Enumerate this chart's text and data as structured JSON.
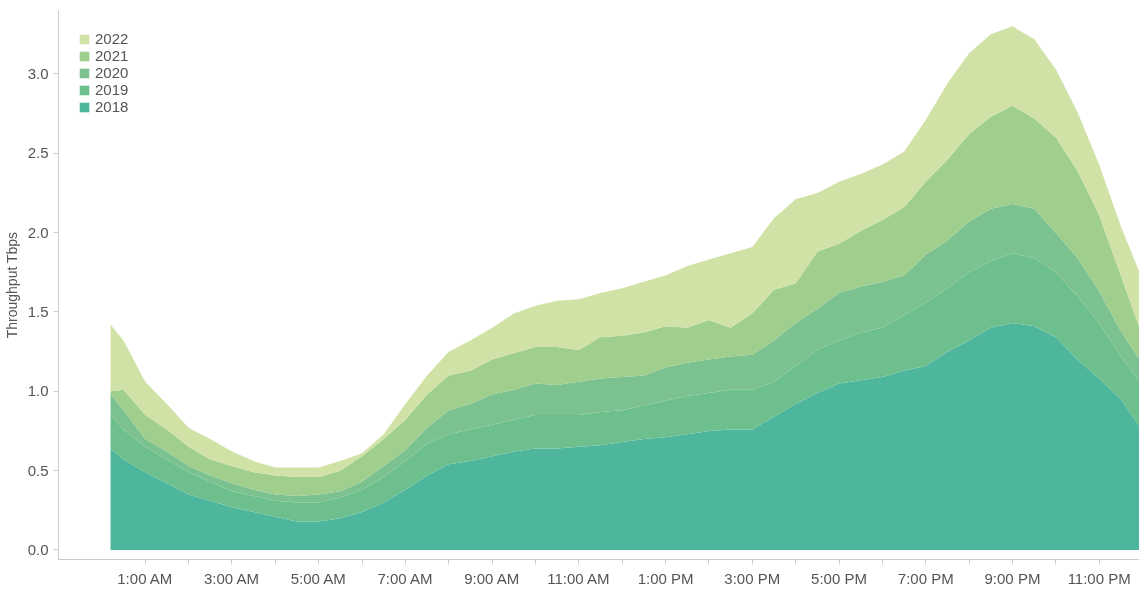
{
  "chart_data": {
    "type": "area",
    "stacked": true,
    "ylabel": "Throughput Tbps",
    "x": [
      0.2,
      0.5,
      1,
      1.5,
      2,
      2.5,
      3,
      3.5,
      4,
      4.5,
      5,
      5.5,
      6,
      6.5,
      7,
      7.5,
      8,
      8.5,
      9,
      9.5,
      10,
      10.5,
      11,
      11.5,
      12,
      12.5,
      13,
      13.5,
      14,
      14.5,
      15,
      15.5,
      16,
      16.5,
      17,
      17.5,
      18,
      18.5,
      19,
      19.5,
      20,
      20.5,
      21,
      21.5,
      22,
      22.5,
      23,
      23.5,
      23.93
    ],
    "series": [
      {
        "name": "2018",
        "color": "#4fb69e",
        "values": [
          0.64,
          0.57,
          0.49,
          0.42,
          0.35,
          0.31,
          0.27,
          0.24,
          0.21,
          0.18,
          0.18,
          0.2,
          0.24,
          0.3,
          0.38,
          0.47,
          0.54,
          0.56,
          0.59,
          0.62,
          0.64,
          0.64,
          0.65,
          0.66,
          0.68,
          0.7,
          0.71,
          0.73,
          0.75,
          0.76,
          0.76,
          0.84,
          0.92,
          0.99,
          1.05,
          1.07,
          1.09,
          1.13,
          1.16,
          1.25,
          1.32,
          1.4,
          1.43,
          1.41,
          1.34,
          1.2,
          1.08,
          0.95,
          0.78
        ]
      },
      {
        "name": "2019",
        "color": "#6dbf8e",
        "values": [
          0.21,
          0.19,
          0.16,
          0.15,
          0.14,
          0.12,
          0.1,
          0.1,
          0.1,
          0.12,
          0.12,
          0.13,
          0.14,
          0.16,
          0.18,
          0.2,
          0.19,
          0.2,
          0.2,
          0.2,
          0.21,
          0.21,
          0.2,
          0.21,
          0.2,
          0.21,
          0.23,
          0.24,
          0.24,
          0.25,
          0.25,
          0.22,
          0.24,
          0.27,
          0.27,
          0.3,
          0.31,
          0.35,
          0.4,
          0.4,
          0.43,
          0.42,
          0.44,
          0.43,
          0.41,
          0.4,
          0.35,
          0.27,
          0.28
        ]
      },
      {
        "name": "2020",
        "color": "#7cc190",
        "values": [
          0.13,
          0.12,
          0.05,
          0.05,
          0.04,
          0.04,
          0.05,
          0.04,
          0.04,
          0.04,
          0.05,
          0.04,
          0.05,
          0.07,
          0.07,
          0.1,
          0.15,
          0.16,
          0.19,
          0.19,
          0.2,
          0.19,
          0.21,
          0.21,
          0.21,
          0.19,
          0.21,
          0.21,
          0.21,
          0.21,
          0.22,
          0.26,
          0.27,
          0.26,
          0.3,
          0.29,
          0.29,
          0.25,
          0.3,
          0.3,
          0.32,
          0.33,
          0.31,
          0.31,
          0.25,
          0.24,
          0.2,
          0.16,
          0.14
        ]
      },
      {
        "name": "2021",
        "color": "#9fce8d",
        "values": [
          0.02,
          0.13,
          0.15,
          0.14,
          0.12,
          0.1,
          0.11,
          0.11,
          0.12,
          0.12,
          0.11,
          0.13,
          0.16,
          0.17,
          0.19,
          0.21,
          0.22,
          0.21,
          0.22,
          0.23,
          0.23,
          0.24,
          0.2,
          0.26,
          0.26,
          0.27,
          0.26,
          0.22,
          0.25,
          0.18,
          0.26,
          0.32,
          0.25,
          0.36,
          0.31,
          0.35,
          0.39,
          0.43,
          0.46,
          0.51,
          0.55,
          0.58,
          0.62,
          0.57,
          0.6,
          0.55,
          0.48,
          0.35,
          0.2
        ]
      },
      {
        "name": "2022",
        "color": "#d1e2a7",
        "values": [
          0.42,
          0.31,
          0.21,
          0.16,
          0.12,
          0.13,
          0.09,
          0.07,
          0.05,
          0.06,
          0.06,
          0.06,
          0.02,
          0.03,
          0.1,
          0.12,
          0.15,
          0.19,
          0.2,
          0.25,
          0.26,
          0.29,
          0.32,
          0.28,
          0.3,
          0.32,
          0.32,
          0.39,
          0.38,
          0.47,
          0.42,
          0.45,
          0.53,
          0.37,
          0.39,
          0.36,
          0.35,
          0.35,
          0.39,
          0.48,
          0.51,
          0.52,
          0.5,
          0.5,
          0.43,
          0.37,
          0.32,
          0.31,
          0.35
        ]
      }
    ],
    "xlim": [
      -1,
      23.93
    ],
    "ylim": [
      -0.06,
      3.4
    ],
    "xticks": [
      {
        "value": 1,
        "label": "1:00 AM"
      },
      {
        "value": 2,
        "label": null
      },
      {
        "value": 3,
        "label": "3:00 AM"
      },
      {
        "value": 4,
        "label": null
      },
      {
        "value": 5,
        "label": "5:00 AM"
      },
      {
        "value": 6,
        "label": null
      },
      {
        "value": 7,
        "label": "7:00 AM"
      },
      {
        "value": 8,
        "label": null
      },
      {
        "value": 9,
        "label": "9:00 AM"
      },
      {
        "value": 10,
        "label": null
      },
      {
        "value": 11,
        "label": "11:00 AM"
      },
      {
        "value": 12,
        "label": null
      },
      {
        "value": 13,
        "label": "1:00 PM"
      },
      {
        "value": 14,
        "label": null
      },
      {
        "value": 15,
        "label": "3:00 PM"
      },
      {
        "value": 16,
        "label": null
      },
      {
        "value": 17,
        "label": "5:00 PM"
      },
      {
        "value": 18,
        "label": null
      },
      {
        "value": 19,
        "label": "7:00 PM"
      },
      {
        "value": 20,
        "label": null
      },
      {
        "value": 21,
        "label": "9:00 PM"
      },
      {
        "value": 22,
        "label": null
      },
      {
        "value": 23,
        "label": "11:00 PM"
      }
    ],
    "yticks": [
      {
        "value": 0,
        "label": "0.0"
      },
      0.5,
      {
        "value": 1,
        "label": "1.0"
      },
      1.5,
      {
        "value": 2,
        "label": "2.0"
      },
      2.5,
      {
        "value": 3,
        "label": "3.0"
      }
    ],
    "grid": false,
    "legend": "top left"
  }
}
